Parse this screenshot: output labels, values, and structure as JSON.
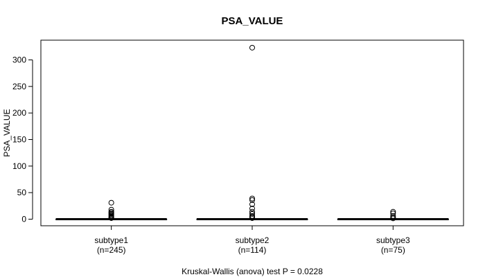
{
  "chart_data": {
    "type": "box",
    "title": "PSA_VALUE",
    "ylabel": "PSA_VALUE",
    "xlabel": "",
    "ylim": [
      -12,
      333
    ],
    "yticks": [
      0,
      50,
      100,
      150,
      200,
      250,
      300
    ],
    "grid": false,
    "footer": "Kruskal-Wallis (anova) test P = 0.0228",
    "groups": [
      {
        "label": "subtype1",
        "n_label": "(n=245)",
        "q1": 0.02,
        "median": 0.05,
        "q3": 0.2,
        "whisker_low": 0.0,
        "whisker_high": 0.5,
        "outliers": [
          31,
          18,
          14,
          12,
          10,
          8,
          6,
          4,
          3,
          2
        ]
      },
      {
        "label": "subtype2",
        "n_label": "(n=114)",
        "q1": 0.02,
        "median": 0.06,
        "q3": 0.3,
        "whisker_low": 0.0,
        "whisker_high": 0.7,
        "outliers": [
          323,
          39,
          36,
          28,
          20,
          14,
          10,
          6,
          4,
          2
        ]
      },
      {
        "label": "subtype3",
        "n_label": "(n=75)",
        "q1": 0.02,
        "median": 0.05,
        "q3": 0.2,
        "whisker_low": 0.0,
        "whisker_high": 0.5,
        "outliers": [
          14,
          11,
          6,
          3,
          1.5
        ]
      }
    ]
  }
}
